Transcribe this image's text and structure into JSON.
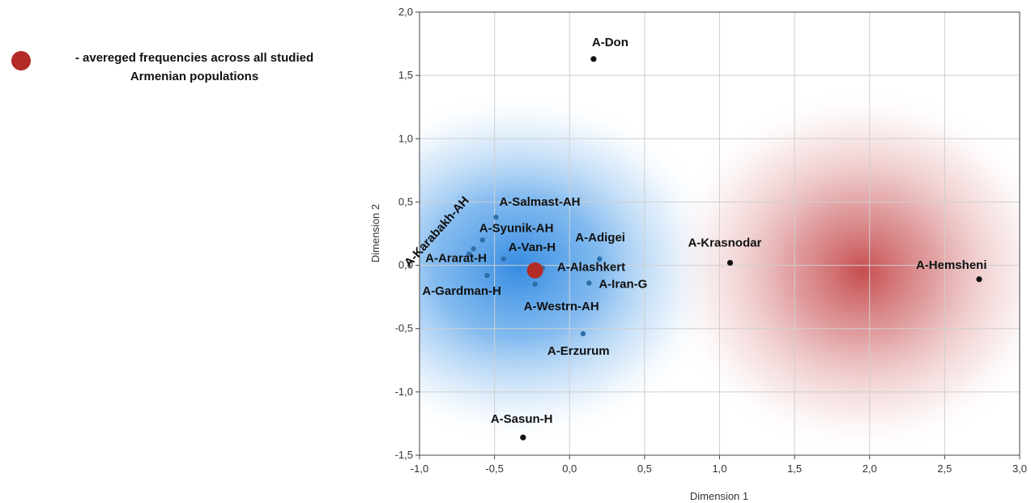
{
  "legend": {
    "marker_color": "#b22b26",
    "line1": "- avereged frequencies across all studied",
    "line2": "Armenian populations"
  },
  "chart_data": {
    "type": "scatter",
    "xlabel": "Dimension 1",
    "ylabel": "Dimension 2",
    "xlim": [
      -1.0,
      3.0
    ],
    "ylim": [
      -1.5,
      2.0
    ],
    "xticks": [
      -1.0,
      -0.5,
      0.0,
      0.5,
      1.0,
      1.5,
      2.0,
      2.5,
      3.0
    ],
    "yticks": [
      -1.5,
      -1.0,
      -0.5,
      0.0,
      0.5,
      1.0,
      1.5,
      2.0
    ],
    "xtick_labels": [
      "-1,0",
      "-0,5",
      "0,0",
      "0,5",
      "1,0",
      "1,5",
      "2,0",
      "2,5",
      "3,0"
    ],
    "ytick_labels": [
      "-1,5",
      "-1,0",
      "-0,5",
      "0,0",
      "0,5",
      "1,0",
      "1,5",
      "2,0"
    ],
    "grid": true,
    "colors": {
      "cluster_point": "#2f6fa8",
      "outlier_point": "#111111",
      "average_point": "#b22b26",
      "blue_zone": "#3b8fdd",
      "red_zone": "#c44848"
    },
    "points": [
      {
        "label": "A-Don",
        "x": 0.16,
        "y": 1.63,
        "group": "outlier"
      },
      {
        "label": "A-Salmast-AH",
        "x": -0.49,
        "y": 0.38,
        "group": "cluster"
      },
      {
        "label": "A-Karabakh-AH",
        "x": -0.64,
        "y": 0.13,
        "group": "cluster"
      },
      {
        "label": "A-Syunik-AH",
        "x": -0.58,
        "y": 0.2,
        "group": "cluster"
      },
      {
        "label": "A-Van-H",
        "x": -0.44,
        "y": 0.05,
        "group": "cluster"
      },
      {
        "label": "A-Ararat-H",
        "x": -0.67,
        "y": 0.09,
        "group": "cluster"
      },
      {
        "label": "A-Adigei",
        "x": 0.2,
        "y": 0.05,
        "group": "cluster"
      },
      {
        "label": "A-Alashkert",
        "x": -0.18,
        "y": -0.02,
        "group": "cluster"
      },
      {
        "label": "A-Iran-G",
        "x": 0.13,
        "y": -0.14,
        "group": "cluster"
      },
      {
        "label": "A-Gardman-H",
        "x": -0.55,
        "y": -0.08,
        "group": "cluster"
      },
      {
        "label": "A-Westrn-AH",
        "x": -0.23,
        "y": -0.15,
        "group": "cluster"
      },
      {
        "label": "A-Erzurum",
        "x": 0.09,
        "y": -0.54,
        "group": "cluster"
      },
      {
        "label": "A-Sasun-H",
        "x": -0.31,
        "y": -1.36,
        "group": "outlier"
      },
      {
        "label": "A-Krasnodar",
        "x": 1.07,
        "y": 0.02,
        "group": "outlier"
      },
      {
        "label": "A-Hemsheni",
        "x": 2.73,
        "y": -0.11,
        "group": "outlier"
      }
    ],
    "average_point": {
      "x": -0.23,
      "y": -0.04
    }
  }
}
